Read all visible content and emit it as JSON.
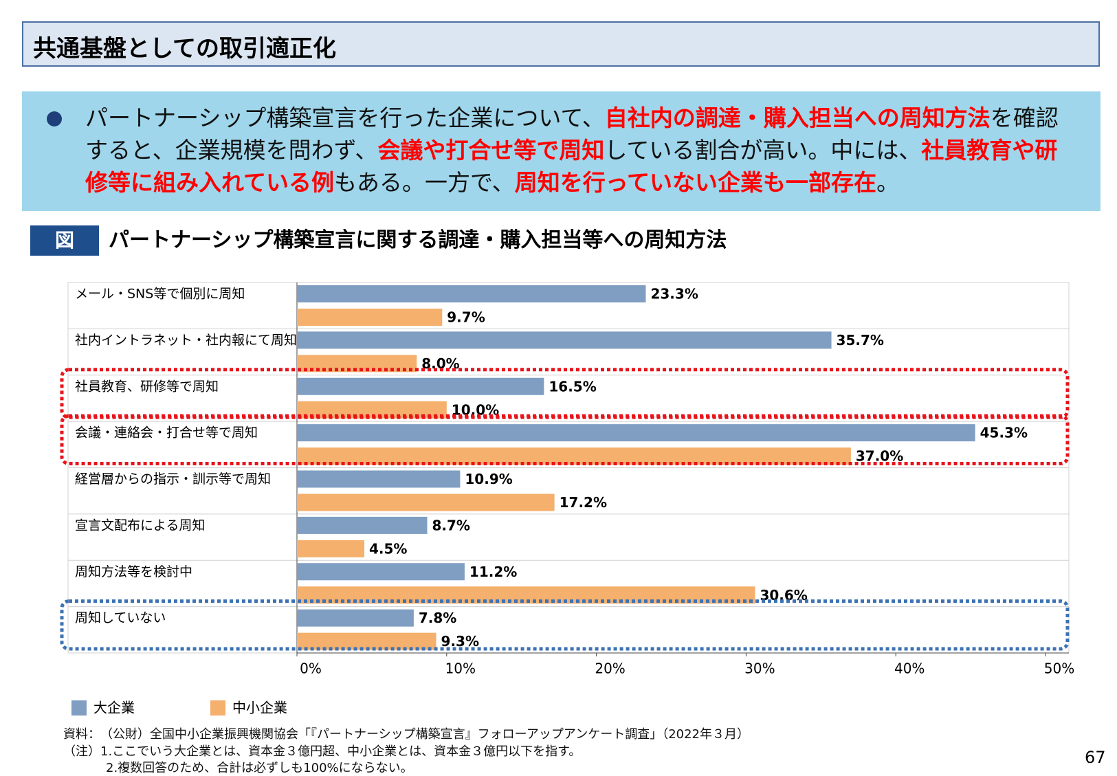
{
  "header": {
    "title": "共通基盤としての取引適正化"
  },
  "bullet": {
    "segments": [
      {
        "text": "パートナーシップ構築宣言を行った企業について、",
        "emphasis": false
      },
      {
        "text": "自社内の調達・購入担当への周知方法",
        "emphasis": true
      },
      {
        "text": "を確認すると、企業規模を問わず、",
        "emphasis": false
      },
      {
        "text": "会議や打合せ等で周知",
        "emphasis": true
      },
      {
        "text": "している割合が高い。中には、",
        "emphasis": false
      },
      {
        "text": "社員教育や研修等に組み入れている例",
        "emphasis": true
      },
      {
        "text": "もある。一方で、",
        "emphasis": false
      },
      {
        "text": "周知を行っていない企業も一部存在",
        "emphasis": true
      },
      {
        "text": "。",
        "emphasis": false
      }
    ]
  },
  "figure": {
    "label": "図",
    "title": "パートナーシップ構築宣言に関する調達・購入担当等への周知方法"
  },
  "chart_data": {
    "type": "hbar",
    "categories": [
      "メール・SNS等で個別に周知",
      "社内イントラネット・社内報にて周知",
      "社員教育、研修等で周知",
      "会議・連絡会・打合せ等で周知",
      "経営層からの指示・訓示等で周知",
      "宣言文配布による周知",
      "周知方法等を検討中",
      "周知していない"
    ],
    "series": [
      {
        "name": "大企業",
        "color": "#7f9ec2",
        "values": [
          23.3,
          35.7,
          16.5,
          45.3,
          10.9,
          8.7,
          11.2,
          7.8
        ],
        "value_labels": [
          "23.3%",
          "35.7%",
          "16.5%",
          "45.3%",
          "10.9%",
          "8.7%",
          "11.2%",
          "7.8%"
        ]
      },
      {
        "name": "中小企業",
        "color": "#f4b06c",
        "values": [
          9.7,
          8.0,
          10.0,
          37.0,
          17.2,
          4.5,
          30.6,
          9.3
        ],
        "value_labels": [
          "9.7%",
          "8.0%",
          "10.0%",
          "37.0%",
          "17.2%",
          "4.5%",
          "30.6%",
          "9.3%"
        ]
      }
    ],
    "xlim": [
      0,
      50
    ],
    "xticks": [
      {
        "value": 0,
        "label": "0%"
      },
      {
        "value": 10,
        "label": "10%"
      },
      {
        "value": 20,
        "label": "20%"
      },
      {
        "value": 30,
        "label": "30%"
      },
      {
        "value": 40,
        "label": "40%"
      },
      {
        "value": 50,
        "label": "50%"
      }
    ]
  },
  "footer": {
    "source": "資料：　（公財）全国中小企業振興機関協会「『パートナーシップ構築宣言』フォローアップアンケート調査」（2022年３月）",
    "notes": [
      "（注）1.ここでいう大企業とは、資本金３億円超、中小企業とは、資本金３億円以下を指す。",
      "2.複数回答のため、合計は必ずしも100%にならない。"
    ],
    "page": "67"
  }
}
